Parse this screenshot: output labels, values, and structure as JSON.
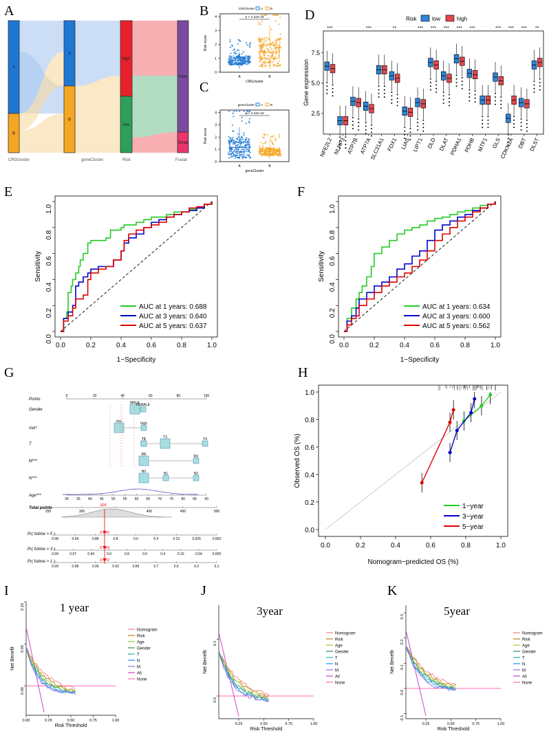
{
  "panel_letters": [
    "A",
    "B",
    "C",
    "D",
    "E",
    "F",
    "G",
    "H",
    "I",
    "J",
    "K"
  ],
  "colors": {
    "blue": "#1f77d4",
    "orange": "#f5a623",
    "red": "#e8202a",
    "green": "#2e9e5b",
    "pink": "#e8356d",
    "lightblue": "#a9c8f0",
    "lightorange": "#f8d9a0",
    "boxblue": "#2f84d6",
    "boxred": "#e2474f"
  },
  "chart_data": [
    {
      "id": "A",
      "type": "sankey",
      "axes": [
        "CRGcluster",
        "geneCluster",
        "Risk",
        "Fustat"
      ],
      "nodes": {
        "CRGcluster": [
          "A",
          "B"
        ],
        "geneCluster": [
          "A",
          "B"
        ],
        "Risk": [
          "high",
          "low"
        ],
        "Fustat": [
          "Alive",
          "Dead"
        ]
      }
    },
    {
      "id": "B",
      "type": "box",
      "legend_title": "CRGcluster",
      "legend": [
        "A",
        "B"
      ],
      "categories": [
        "A",
        "B"
      ],
      "xlabel": "CRGcluster",
      "ylabel": "Risk score",
      "pvalue": "p < 2.22e-16",
      "yticks": [
        0,
        1,
        2,
        3,
        4
      ],
      "ylim": [
        0,
        4.2
      ],
      "medians": [
        0.85,
        1.45
      ],
      "q1": [
        0.7,
        1.0
      ],
      "q3": [
        1.0,
        1.95
      ]
    },
    {
      "id": "C",
      "type": "box",
      "legend_title": "geneCluster",
      "legend": [
        "A",
        "B"
      ],
      "categories": [
        "A",
        "B"
      ],
      "xlabel": "geneCluster",
      "ylabel": "Risk score",
      "pvalue": "p < 2.22e-16",
      "yticks": [
        0,
        1,
        2,
        3,
        4
      ],
      "ylim": [
        0,
        4.2
      ],
      "medians": [
        1.15,
        0.8
      ],
      "q1": [
        0.8,
        0.65
      ],
      "q3": [
        1.6,
        0.95
      ]
    },
    {
      "id": "D",
      "type": "box",
      "legend_title": "Risk",
      "legend": [
        "low",
        "high"
      ],
      "ylabel": "Gene expression",
      "yticks": [
        2.5,
        5.0,
        7.5
      ],
      "ylim": [
        0.8,
        9.3
      ],
      "genes": [
        "NFE2L2",
        "NLRP3",
        "ATP7B",
        "ATP7A",
        "SLC31A1",
        "FDX1",
        "LIAS",
        "LIPT1",
        "DLD",
        "DLAT",
        "PDHA1",
        "PDHB",
        "MTF1",
        "GLS",
        "CDKN2A",
        "DBT",
        "DLST"
      ],
      "significance": [
        "***",
        "",
        "",
        "***",
        "",
        "**",
        "",
        "***",
        "***",
        "***",
        "***",
        "***",
        "",
        "***",
        "***",
        "***",
        "**"
      ],
      "low_median": [
        6.4,
        1.9,
        3.5,
        3.1,
        6.1,
        5.6,
        2.7,
        3.4,
        6.7,
        5.6,
        7.0,
        5.8,
        3.6,
        5.5,
        2.1,
        3.4,
        6.5
      ],
      "high_median": [
        6.2,
        1.9,
        3.4,
        2.9,
        6.1,
        5.4,
        2.6,
        3.3,
        6.5,
        5.4,
        6.8,
        5.7,
        3.6,
        5.2,
        3.6,
        3.3,
        6.7
      ]
    },
    {
      "id": "E",
      "type": "line",
      "xlabel": "1−Specificity",
      "ylabel": "Sensitivity",
      "ticks": [
        "0.0",
        "0.2",
        "0.4",
        "0.6",
        "0.8",
        "1.0"
      ],
      "series": [
        {
          "name": "AUC at 1 years: 0.688",
          "color": "#22cc22",
          "x": [
            0,
            0.02,
            0.04,
            0.05,
            0.07,
            0.08,
            0.1,
            0.12,
            0.13,
            0.15,
            0.18,
            0.2,
            0.25,
            0.3,
            0.33,
            0.4,
            0.42,
            0.45,
            0.5,
            0.55,
            0.6,
            0.65,
            0.7,
            0.75,
            0.8,
            0.85,
            0.9,
            0.95,
            1.0
          ],
          "y": [
            0,
            0.1,
            0.15,
            0.3,
            0.35,
            0.4,
            0.45,
            0.5,
            0.55,
            0.6,
            0.68,
            0.7,
            0.7,
            0.72,
            0.78,
            0.8,
            0.82,
            0.82,
            0.84,
            0.86,
            0.88,
            0.88,
            0.9,
            0.92,
            0.92,
            0.94,
            0.95,
            0.98,
            1.0
          ]
        },
        {
          "name": "AUC at 3 years: 0.640",
          "color": "#0000cc",
          "x": [
            0,
            0.02,
            0.05,
            0.08,
            0.1,
            0.12,
            0.15,
            0.18,
            0.2,
            0.25,
            0.3,
            0.35,
            0.4,
            0.42,
            0.45,
            0.5,
            0.55,
            0.6,
            0.65,
            0.7,
            0.75,
            0.8,
            0.85,
            0.9,
            0.95,
            1.0
          ],
          "y": [
            0,
            0.1,
            0.15,
            0.2,
            0.35,
            0.38,
            0.42,
            0.45,
            0.48,
            0.5,
            0.5,
            0.55,
            0.62,
            0.68,
            0.72,
            0.75,
            0.8,
            0.84,
            0.86,
            0.88,
            0.9,
            0.92,
            0.93,
            0.95,
            0.98,
            1.0
          ]
        },
        {
          "name": "AUC at 5 years: 0.637",
          "color": "#dd0000",
          "x": [
            0,
            0.02,
            0.05,
            0.08,
            0.1,
            0.15,
            0.18,
            0.2,
            0.25,
            0.3,
            0.35,
            0.4,
            0.42,
            0.45,
            0.5,
            0.55,
            0.6,
            0.65,
            0.7,
            0.75,
            0.8,
            0.85,
            0.9,
            0.95,
            1.0
          ],
          "y": [
            0,
            0.08,
            0.12,
            0.18,
            0.25,
            0.28,
            0.4,
            0.45,
            0.48,
            0.5,
            0.55,
            0.62,
            0.7,
            0.75,
            0.78,
            0.8,
            0.82,
            0.84,
            0.88,
            0.9,
            0.92,
            0.95,
            0.96,
            0.98,
            1.0
          ]
        }
      ]
    },
    {
      "id": "F",
      "type": "line",
      "xlabel": "1−Specificity",
      "ylabel": "Sensitivity",
      "ticks": [
        "0.0",
        "0.2",
        "0.4",
        "0.6",
        "0.8",
        "1.0"
      ],
      "series": [
        {
          "name": "AUC at 1 years: 0.634",
          "color": "#22cc22",
          "x": [
            0,
            0.02,
            0.05,
            0.08,
            0.1,
            0.12,
            0.15,
            0.18,
            0.2,
            0.25,
            0.3,
            0.35,
            0.4,
            0.45,
            0.5,
            0.55,
            0.6,
            0.65,
            0.7,
            0.75,
            0.8,
            0.85,
            0.9,
            0.95,
            1.0
          ],
          "y": [
            0,
            0.1,
            0.18,
            0.25,
            0.3,
            0.35,
            0.42,
            0.5,
            0.6,
            0.65,
            0.7,
            0.75,
            0.78,
            0.8,
            0.82,
            0.85,
            0.87,
            0.88,
            0.9,
            0.92,
            0.93,
            0.95,
            0.97,
            0.98,
            1.0
          ]
        },
        {
          "name": "AUC at 3 years: 0.600",
          "color": "#0000cc",
          "x": [
            0,
            0.02,
            0.05,
            0.08,
            0.1,
            0.15,
            0.2,
            0.25,
            0.3,
            0.35,
            0.4,
            0.45,
            0.5,
            0.55,
            0.6,
            0.65,
            0.7,
            0.75,
            0.8,
            0.85,
            0.9,
            0.95,
            1.0
          ],
          "y": [
            0,
            0.08,
            0.12,
            0.18,
            0.25,
            0.3,
            0.35,
            0.38,
            0.42,
            0.48,
            0.52,
            0.58,
            0.62,
            0.7,
            0.78,
            0.82,
            0.85,
            0.88,
            0.9,
            0.93,
            0.95,
            0.98,
            1.0
          ]
        },
        {
          "name": "AUC at 5 years: 0.562",
          "color": "#dd0000",
          "x": [
            0,
            0.02,
            0.05,
            0.08,
            0.1,
            0.15,
            0.2,
            0.25,
            0.3,
            0.35,
            0.4,
            0.45,
            0.5,
            0.55,
            0.6,
            0.65,
            0.7,
            0.75,
            0.8,
            0.85,
            0.9,
            0.95,
            1.0
          ],
          "y": [
            0,
            0.05,
            0.1,
            0.12,
            0.2,
            0.25,
            0.3,
            0.35,
            0.38,
            0.42,
            0.45,
            0.5,
            0.55,
            0.62,
            0.7,
            0.75,
            0.8,
            0.85,
            0.88,
            0.92,
            0.95,
            0.98,
            1.0
          ]
        }
      ]
    },
    {
      "id": "G",
      "type": "nomogram",
      "rows": [
        {
          "label": "Points",
          "ticks": [
            "0",
            "20",
            "40",
            "60",
            "80",
            "100"
          ]
        },
        {
          "label": "Gender",
          "levels": [
            "MALE",
            "FEMALE"
          ]
        },
        {
          "label": "risk*",
          "levels": [
            "low",
            "high"
          ]
        },
        {
          "label": "T",
          "levels": [
            "T2",
            "T1",
            "T3",
            "T4"
          ]
        },
        {
          "label": "M***",
          "levels": [
            "M0",
            "M1"
          ]
        },
        {
          "label": "N***",
          "levels": [
            "N0",
            "N1",
            "N2"
          ]
        },
        {
          "label": "Age***",
          "ticks": [
            "30",
            "35",
            "40",
            "45",
            "50",
            "55",
            "60",
            "65",
            "70",
            "75",
            "80",
            "85",
            "90"
          ]
        },
        {
          "label": "Total points",
          "ticks": [
            "250",
            "300",
            "350",
            "400",
            "450",
            "500"
          ],
          "value": "326"
        },
        {
          "label": "Pr( futime > 5 )",
          "ticks": [
            "0.98",
            "0.94",
            "0.88",
            "0.8",
            "0.6",
            "0.4",
            "0.15",
            "0.025",
            "0.002"
          ],
          "value": "0.856"
        },
        {
          "label": "Pr( futime > 3 )",
          "ticks": [
            "0.99",
            "0.97",
            "0.94",
            "0.9",
            "0.8",
            "0.6",
            "0.4",
            "0.15",
            "0.04",
            "0.005"
          ],
          "value": "0.924"
        },
        {
          "label": "Pr( futime > 1 )",
          "ticks": [
            "0.99",
            "0.98",
            "0.96",
            "0.92",
            "0.85",
            "0.7",
            "0.5",
            "0.3",
            "0.1"
          ],
          "value": "0.972"
        }
      ]
    },
    {
      "id": "H",
      "type": "line",
      "xlabel": "Nomogram−predicted OS (%)",
      "ylabel": "Observed OS (%)",
      "ticks": [
        "0.0",
        "0.2",
        "0.4",
        "0.6",
        "0.8",
        "1.0"
      ],
      "series": [
        {
          "name": "1−year",
          "color": "#22cc22",
          "x": [
            0.79,
            0.89,
            0.94
          ],
          "y": [
            0.79,
            0.9,
            0.98
          ]
        },
        {
          "name": "3−year",
          "color": "#0000cc",
          "x": [
            0.71,
            0.75,
            0.83,
            0.85
          ],
          "y": [
            0.56,
            0.72,
            0.85,
            0.95
          ]
        },
        {
          "name": "5−year",
          "color": "#dd0000",
          "x": [
            0.55,
            0.71,
            0.73
          ],
          "y": [
            0.34,
            0.78,
            0.87
          ]
        }
      ]
    },
    {
      "id": "I",
      "type": "line",
      "title": "1 year",
      "xlabel": "Risk Threshold",
      "ylabel": "Net Benefit",
      "xticks": [
        "0.00",
        "0.25",
        "0.50",
        "0.75",
        "1.00"
      ],
      "yticks": [
        "0.00",
        "0.05",
        "0.10"
      ],
      "legend": [
        "Nomogram",
        "Risk",
        "Age",
        "Gender",
        "T",
        "N",
        "M",
        "All",
        "None"
      ]
    },
    {
      "id": "J",
      "type": "line",
      "title": "3year",
      "xlabel": "Risk Threshold",
      "ylabel": "Net Benefit",
      "xticks": [
        "0.25",
        "0.50",
        "0.75",
        "1.00"
      ],
      "yticks": [
        "0.0",
        "0.1"
      ],
      "legend": [
        "Nomogram",
        "Risk",
        "Age",
        "Gender",
        "T",
        "N",
        "M",
        "All",
        "None"
      ]
    },
    {
      "id": "K",
      "type": "line",
      "title": "5year",
      "xlabel": "Risk Threshold",
      "ylabel": "Net Benefit",
      "xticks": [
        "0.25",
        "0.50",
        "0.75",
        "1.00"
      ],
      "yticks": [
        "-0.1",
        "0.0",
        "0.1",
        "0.2",
        "0.3"
      ],
      "legend": [
        "Nomogram",
        "Risk",
        "Age",
        "Gender",
        "T",
        "N",
        "M",
        "All",
        "None"
      ]
    }
  ],
  "dca_colors": [
    "#f08080",
    "#b8860b",
    "#9acd32",
    "#2e8b57",
    "#20b2aa",
    "#1e90ff",
    "#9370db",
    "#cc44cc",
    "#ff69b4"
  ]
}
